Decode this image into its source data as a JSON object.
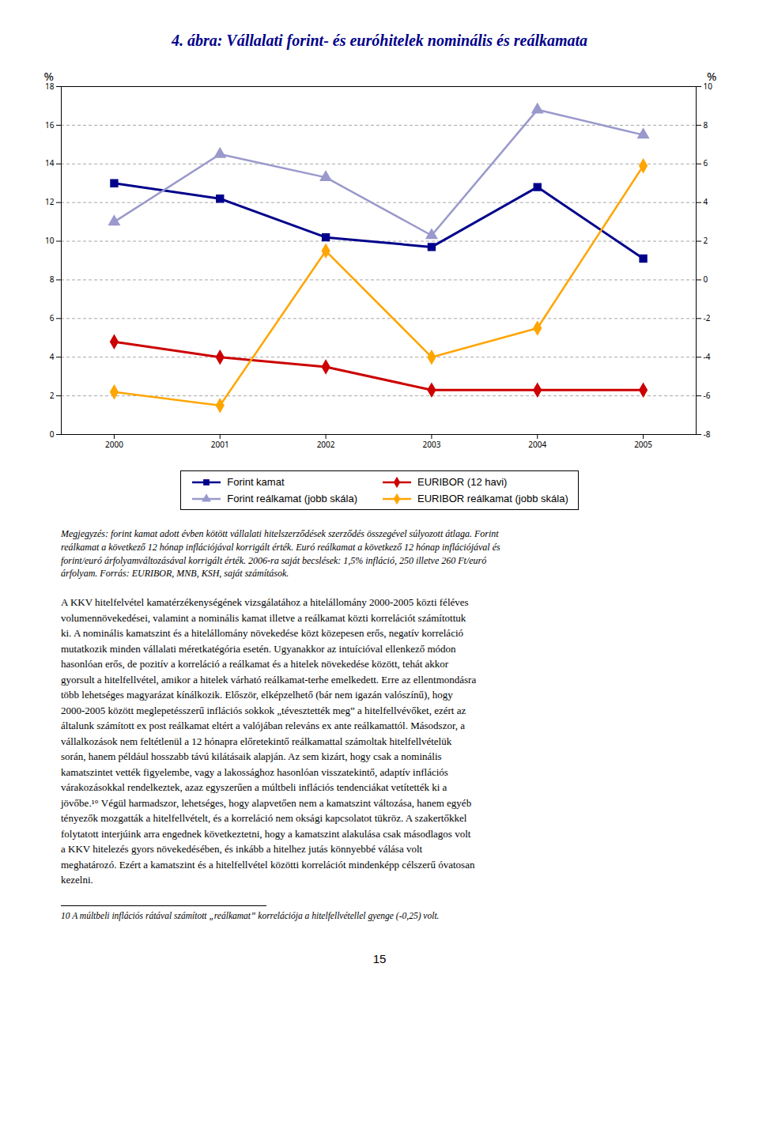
{
  "chart_data": {
    "type": "line",
    "title": "4. ábra: Vállalati forint- és euróhitelek nominális és reálkamata",
    "x": [
      2000,
      2001,
      2002,
      2003,
      2004,
      2005
    ],
    "xlim": [
      1999.5,
      2005.5
    ],
    "xticks": [
      2000,
      2001,
      2002,
      2003,
      2004,
      2005
    ],
    "ylabel": "%",
    "ylim": [
      0,
      18
    ],
    "yticks": [
      0,
      2,
      4,
      6,
      8,
      10,
      12,
      14,
      16,
      18
    ],
    "y2label": "%",
    "y2lim": [
      -8,
      10
    ],
    "y2ticks": [
      -8,
      -6,
      -4,
      -2,
      0,
      2,
      4,
      6,
      8,
      10
    ],
    "grid": true,
    "legend": "bottom",
    "series": [
      {
        "name": "Forint kamat",
        "color": "#00008B",
        "marker": "square",
        "values": [
          13.0,
          12.2,
          10.2,
          9.7,
          12.8,
          9.1
        ]
      },
      {
        "name": "EURIBOR (12 havi)",
        "color": "#CC0000",
        "marker": "diamond",
        "values": [
          4.8,
          4.0,
          3.5,
          2.3,
          2.3,
          2.3
        ]
      },
      {
        "name": "Forint reálkamat (jobb skála)",
        "color": "#9999CC",
        "marker": "triangle",
        "axis": "y2",
        "values": [
          3.0,
          6.5,
          5.3,
          2.3,
          8.8,
          7.5
        ]
      },
      {
        "name": "EURIBOR reálkamat (jobb skála)",
        "color": "#FFA500",
        "marker": "diamond",
        "axis": "y2",
        "values": [
          -5.8,
          -6.5,
          1.5,
          -4.0,
          -2.5,
          5.9
        ]
      }
    ],
    "annotations": [
      "Megjegyzés: forint kamat adott évben kötött vállalati hitelszerződések szerződés összegével súlyozott átlaga. Forint\nreálkamat a következő 12 hónap inflációjával korrigált érték. Euró reálkamat a következő 12 hónap inflációjával és\nforint/euró árfolyamváltozásával korrigált érték. 2006-ra saját becslések: 1,5% infláció, 250 illetve 260 Ft/euró\nárfolyam. Forrás: EURIBOR, MNB, KSH, saját számítások.",
      "A KKV hitelfelvétel kamatérzékenységének vizsgálatához a hitelállomány 2000-2005 közti féléves\nvolumennövekedései, valamint a nominális kamat illetve a reálkamat közti korrelációt számítottuk\nki. A nominális kamatszint és a hitelállomány növekedése közt közepesen erős, negatív korreláció\nmutatkozik minden vállalati méretkatégória esetén. Ugyanakkor az intuícióval ellenkező módon\nhasonlóan erős, de pozitív a korreláció a reálkamat és a hitelek növekedése között, tehát akkor\ngyorsult a hitelfellvétel, amikor a hitelek várható reálkamat-terhe emelkedett. Erre az ellentmondásra\ntöbb lehetséges magyarázat kínálkozik. Először, elképzelhető (bár nem igazán valószínű), hogy\n2000-2005 között meglepetésszerű inflációs sokkok „tévesztették meg” a hitelfellvévőket, ezért az\náltalunk számított ex post reálkamat eltért a valójában releváns ex ante reálkamattól. Másodszor, a\nvállalkozások nem feltétlenül a 12 hónapra előretekintő reálkamattal számoltak hitelfellvételük\nsorán, hanem például hosszabb távú kilátásaik alapján. Az sem kizárt, hogy csak a nominális\nkamatszintet vették figyelembe, vagy a lakossághoz hasonlóan visszatekintő, adaptív inflációs\nvárakozásokkal rendelkeztek, azaz egyszerűen a múltbeli inflációs tendenciákat vetítették ki a\njövőbe.¹° Végül harmadszor, lehetséges, hogy alapvetően nem a kamatszint változása, hanem egyéb\ntényezők mozgatták a hitelfellvételt, és a korreláció nem oksági kapcsolatot tükröz. A szakertőkkel\nfolytatott interjúink arra engednek következtetni, hogy a kamatszint alakulása csak másodlagos volt\na KKV hitelezés gyors növekedésében, és inkább a hitelhez jutás könnyebbé válása volt\nmeghatározó. Ezért a kamatszint és a hitelfellvétel közötti korrelációt mindenképp célszerű óvatosan\nkezelni.",
      "10 A múltbeli inflációs rátával számított „reálkamat” korrelációja a hitelfellvétellel gyenge (-0,25) volt.",
      "15"
    ]
  }
}
